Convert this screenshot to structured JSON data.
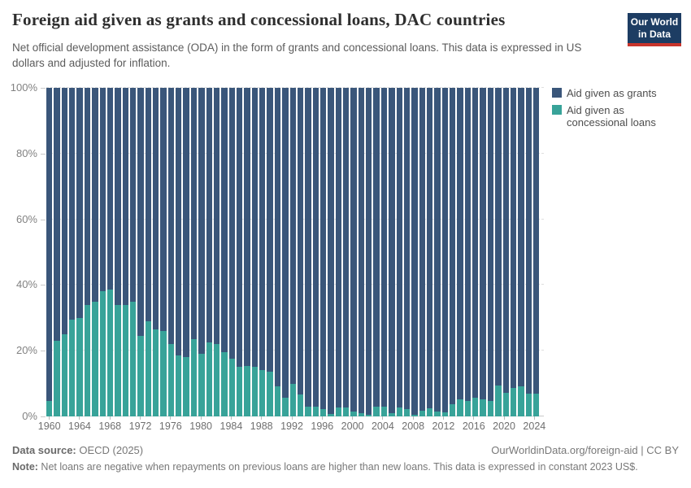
{
  "header": {
    "title": "Foreign aid given as grants and concessional loans, DAC countries",
    "subtitle": "Net official development assistance (ODA) in the form of grants and concessional loans. This data is expressed in US dollars and adjusted for inflation.",
    "logo": {
      "line1": "Our World",
      "line2": "in Data"
    }
  },
  "legend": [
    {
      "label": "Aid given as grants",
      "color": "#3a567a"
    },
    {
      "label": "Aid given as concessional loans",
      "color": "#38a399"
    }
  ],
  "chart_data": {
    "type": "bar",
    "stacked": true,
    "normalized": "100%",
    "unit": "%",
    "grid": "dashed-horizontal",
    "legend_position": "top-right",
    "ylim": [
      0,
      100
    ],
    "x": [
      1960,
      1961,
      1962,
      1963,
      1964,
      1965,
      1966,
      1967,
      1968,
      1969,
      1970,
      1971,
      1972,
      1973,
      1974,
      1975,
      1976,
      1977,
      1978,
      1979,
      1980,
      1981,
      1982,
      1983,
      1984,
      1985,
      1986,
      1987,
      1988,
      1989,
      1990,
      1991,
      1992,
      1993,
      1994,
      1995,
      1996,
      1997,
      1998,
      1999,
      2000,
      2001,
      2002,
      2003,
      2004,
      2005,
      2006,
      2007,
      2008,
      2009,
      2010,
      2011,
      2012,
      2013,
      2014,
      2015,
      2016,
      2017,
      2018,
      2019,
      2020,
      2021,
      2022,
      2023,
      2024
    ],
    "series": [
      {
        "name": "Aid given as grants",
        "color": "#3a567a",
        "values": [
          95.4,
          77,
          75,
          70.5,
          70,
          66,
          65,
          62,
          61.5,
          66,
          66,
          65,
          75.5,
          71,
          73.5,
          74,
          78,
          81.5,
          82,
          76.5,
          81,
          77.5,
          78,
          80.5,
          82.5,
          84.8,
          84.6,
          84.9,
          85.8,
          86.4,
          90.8,
          94.4,
          90.2,
          93.2,
          97,
          97.1,
          97.8,
          99.3,
          97.3,
          97.3,
          98.6,
          99,
          99.5,
          97.1,
          97,
          99.1,
          97.3,
          97.8,
          99.4,
          98.3,
          97.5,
          98.6,
          98.7,
          96.2,
          94.8,
          95.2,
          94.2,
          94.8,
          95.4,
          90.6,
          92.8,
          91.4,
          90.8,
          93,
          93
        ]
      },
      {
        "name": "Aid given as concessional loans",
        "color": "#38a399",
        "values": [
          4.6,
          23,
          25,
          29.5,
          30,
          34,
          35,
          38,
          38.5,
          34,
          34,
          35,
          24.5,
          29,
          26.5,
          26,
          22,
          18.5,
          18,
          23.5,
          19,
          22.5,
          22,
          19.5,
          17.5,
          15.2,
          15.4,
          15.1,
          14.2,
          13.6,
          9.2,
          5.6,
          9.8,
          6.8,
          3,
          2.9,
          2.2,
          0.7,
          2.7,
          2.7,
          1.4,
          1,
          0.5,
          2.9,
          3,
          0.9,
          2.7,
          2.2,
          0.6,
          1.7,
          2.5,
          1.4,
          1.3,
          3.8,
          5.2,
          4.8,
          5.8,
          5.2,
          4.6,
          9.4,
          7.2,
          8.6,
          9.2,
          7,
          7
        ]
      }
    ],
    "yticks": [
      {
        "label": "0%",
        "value": 0
      },
      {
        "label": "20%",
        "value": 20
      },
      {
        "label": "40%",
        "value": 40
      },
      {
        "label": "60%",
        "value": 60
      },
      {
        "label": "80%",
        "value": 80
      },
      {
        "label": "100%",
        "value": 100
      }
    ],
    "xticks": [
      1960,
      1964,
      1968,
      1972,
      1976,
      1980,
      1984,
      1988,
      1992,
      1996,
      2000,
      2004,
      2008,
      2012,
      2016,
      2020,
      2024
    ]
  },
  "footer": {
    "source_label": "Data source:",
    "source_value": " OECD (2025)",
    "link": "OurWorldinData.org/foreign-aid | CC BY",
    "note_label": "Note:",
    "note_value": " Net loans are negative when repayments on previous loans are higher than new loans. This data is expressed in constant 2023 US$."
  }
}
